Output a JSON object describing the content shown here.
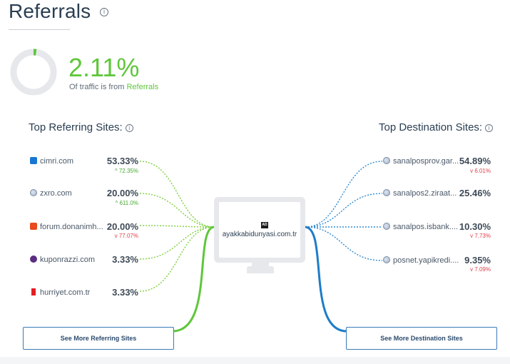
{
  "header": {
    "title": "Referrals",
    "info_glyph": "i"
  },
  "summary": {
    "percent": "2.11%",
    "caption_prefix": "Of traffic is from ",
    "caption_link": "Referrals",
    "share": 0.0211
  },
  "referring": {
    "title": "Top Referring Sites:",
    "items": [
      {
        "name": "cimri.com",
        "value": "53.33%",
        "change": "72.35%",
        "direction": "up",
        "icon": "cimri-c-icon",
        "icon_color": "#1976d2"
      },
      {
        "name": "zxro.com",
        "value": "20.00%",
        "change": "611.0%",
        "direction": "up",
        "icon": "globe-icon",
        "icon_color": "#7b8ea8"
      },
      {
        "name": "forum.donanimh...",
        "value": "20.00%",
        "change": "77.07%",
        "direction": "down",
        "icon": "dh-icon",
        "icon_color": "#e8491d"
      },
      {
        "name": "kuponrazzi.com",
        "value": "3.33%",
        "change": "",
        "direction": "none",
        "icon": "kuponrazzi-k-icon",
        "icon_color": "#5a2d82"
      },
      {
        "name": "hurriyet.com.tr",
        "value": "3.33%",
        "change": "",
        "direction": "none",
        "icon": "hurriyet-h-icon",
        "icon_color": "#e31e24"
      }
    ],
    "button": "See More Referring Sites"
  },
  "destination": {
    "title": "Top Destination Sites:",
    "items": [
      {
        "name": "sanalposprov.gar...",
        "value": "54.89%",
        "change": "6.01%",
        "direction": "down",
        "icon": "globe-icon"
      },
      {
        "name": "sanalpos2.ziraat...",
        "value": "25.46%",
        "change": "",
        "direction": "none",
        "icon": "globe-icon"
      },
      {
        "name": "sanalpos.isbank....",
        "value": "10.30%",
        "change": "7.73%",
        "direction": "down",
        "icon": "globe-icon"
      },
      {
        "name": "posnet.yapikredi....",
        "value": "9.35%",
        "change": "7.09%",
        "direction": "down",
        "icon": "globe-icon"
      }
    ],
    "button": "See More Destination Sites"
  },
  "center": {
    "ad_badge": "AD",
    "domain": "ayakkabidunyasi.com.tr"
  },
  "colors": {
    "accent_green": "#5fc63b",
    "accent_blue": "#1e7cc8",
    "down_red": "#e0414b",
    "up_green": "#4aa832"
  }
}
